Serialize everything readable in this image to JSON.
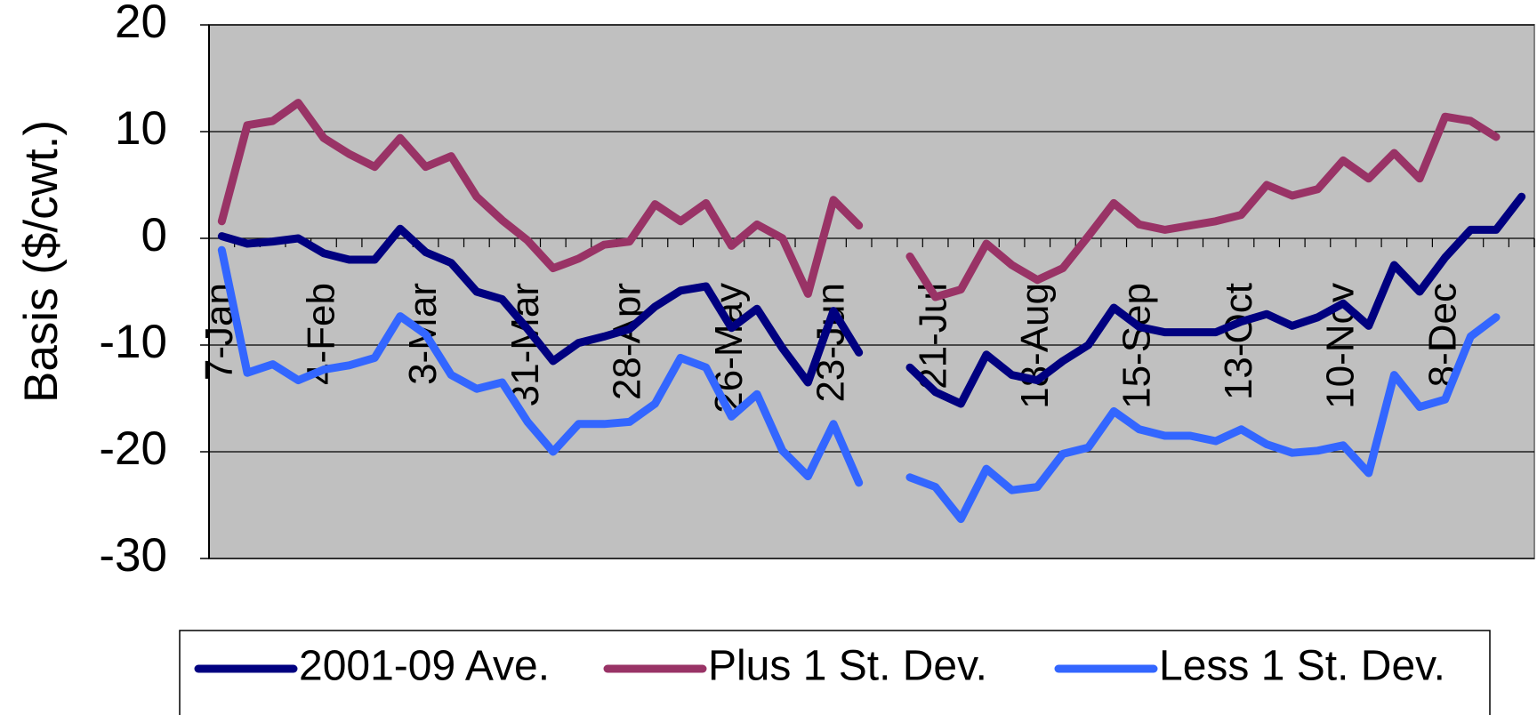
{
  "chart_data": {
    "type": "line",
    "y_label": "Basis ($/cwt.)",
    "categories": [
      "7-Jan",
      null,
      null,
      null,
      "4-Feb",
      null,
      null,
      null,
      "3-Mar",
      null,
      null,
      null,
      "31-Mar",
      null,
      null,
      null,
      "28-Apr",
      null,
      null,
      null,
      "26-May",
      null,
      null,
      null,
      "23-Jun",
      null,
      null,
      null,
      "21-Jul",
      null,
      null,
      null,
      "18-Aug",
      null,
      null,
      null,
      "15-Sep",
      null,
      null,
      null,
      "13-Oct",
      null,
      null,
      null,
      "10-Nov",
      null,
      null,
      null,
      "8-Dec",
      null,
      null,
      null
    ],
    "series": [
      {
        "name": "2001-09 Ave.",
        "color": "#000080",
        "values": [
          0.2,
          -0.5,
          -0.3,
          0,
          -1.4,
          -2,
          -2,
          0.9,
          -1.3,
          -2.3,
          -5,
          -5.7,
          -8.5,
          -11.5,
          -9.8,
          -9.2,
          -8.5,
          -6.4,
          -4.9,
          -4.5,
          -8.4,
          -6.6,
          -10.3,
          -13.5,
          -6.8,
          -10.7,
          null,
          -12.1,
          -14.4,
          -15.5,
          -10.9,
          -12.8,
          -13.3,
          -11.5,
          -10,
          -6.5,
          -8.3,
          -8.8,
          -8.8,
          -8.8,
          -7.8,
          -7.1,
          -8.2,
          -7.4,
          -6.1,
          -8.2,
          -2.5,
          -5,
          -1.8,
          0.8,
          0.8,
          3.9
        ]
      },
      {
        "name": "Plus 1 St. Dev.",
        "color": "#993366",
        "values": [
          1.6,
          10.6,
          11,
          12.7,
          9.4,
          7.9,
          6.7,
          9.4,
          6.7,
          7.7,
          3.9,
          1.7,
          -0.2,
          -2.8,
          -1.9,
          -0.6,
          -0.3,
          3.2,
          1.6,
          3.3,
          -0.7,
          1.3,
          0,
          -5.2,
          3.6,
          1.2,
          null,
          -1.7,
          -5.5,
          -4.8,
          -0.5,
          -2.5,
          -3.9,
          -2.8,
          0.2,
          3.3,
          1.3,
          0.8,
          1.2,
          1.6,
          2.2,
          5,
          4,
          4.6,
          7.3,
          5.6,
          8,
          5.6,
          11.4,
          11,
          9.5,
          null
        ]
      },
      {
        "name": "Less 1 St. Dev.",
        "color": "#3366ff",
        "values": [
          -1.1,
          -12.6,
          -11.8,
          -13.3,
          -12.3,
          -11.9,
          -11.2,
          -7.3,
          -9,
          -12.8,
          -14.1,
          -13.5,
          -17.2,
          -20,
          -17.4,
          -17.4,
          -17.2,
          -15.5,
          -11.2,
          -12.1,
          -16.7,
          -14.6,
          -19.9,
          -22.3,
          -17.4,
          -22.9,
          null,
          -22.4,
          -23.3,
          -26.3,
          -21.6,
          -23.6,
          -23.3,
          -20.2,
          -19.6,
          -16.2,
          -17.9,
          -18.5,
          -18.5,
          -19,
          -17.9,
          -19.3,
          -20.1,
          -19.9,
          -19.4,
          -22,
          -12.8,
          -15.8,
          -15.1,
          -9.2,
          -7.4,
          null
        ]
      }
    ],
    "ylim": [
      -30,
      20
    ],
    "yticks": [
      20,
      10,
      0,
      -10,
      -20,
      -30
    ],
    "grid": true,
    "plot_background": "#c0c0c0",
    "legend": "bottom"
  }
}
